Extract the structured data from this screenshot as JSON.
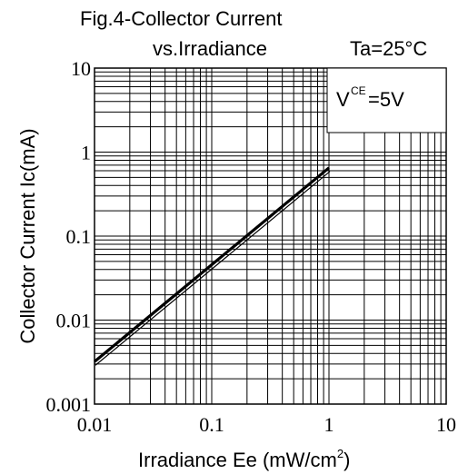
{
  "chart_data": {
    "type": "line",
    "title_line1": "Fig.4-Collector Current",
    "title_line2": "vs.Irradiance",
    "condition": "Ta=25°C",
    "xlabel_main": "Irradiance Ee (mW/cm",
    "xlabel_sup": "2",
    "xlabel_end": ")",
    "ylabel": "Collector Current Ic(mA)",
    "legend_V": "V",
    "legend_sub": "CE",
    "legend_val": "=5V",
    "x_scale": "log",
    "y_scale": "log",
    "xlim": [
      0.01,
      10
    ],
    "ylim": [
      0.001,
      10
    ],
    "x_ticks": [
      "0.01",
      "0.1",
      "1",
      "10"
    ],
    "y_ticks": [
      "0.001",
      "0.01",
      "0.1",
      "1",
      "10"
    ],
    "grid": true,
    "series": [
      {
        "x": [
          0.01,
          1
        ],
        "y": [
          0.0032,
          0.65
        ]
      }
    ]
  }
}
